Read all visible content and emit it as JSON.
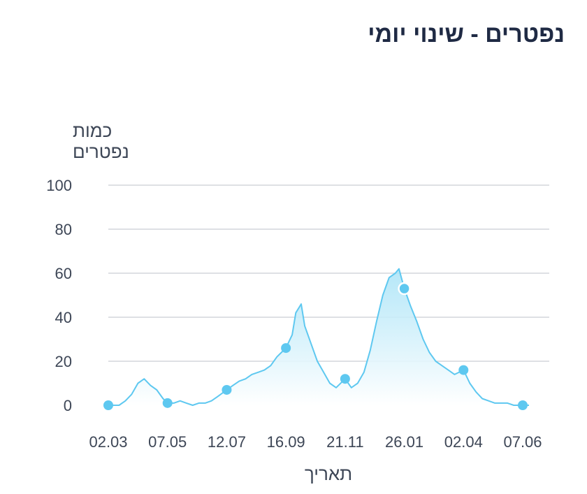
{
  "card": {
    "title": "נפטרים - שינוי יומי"
  },
  "chart_data": {
    "type": "area",
    "title": "נפטרים - שינוי יומי",
    "xlabel": "תאריך",
    "ylabel_lines": [
      "כמות",
      "נפטרים"
    ],
    "ylim": [
      0,
      100
    ],
    "yticks": [
      0,
      20,
      40,
      60,
      80,
      100
    ],
    "xtick_labels": [
      "02.03",
      "07.05",
      "12.07",
      "16.09",
      "21.11",
      "26.01",
      "02.04",
      "07.06"
    ],
    "grid": true,
    "legend": "none",
    "line_color": "#5ec8f0",
    "marker_color": "#5ec8f0",
    "fill_color_top": "#a8e3f7",
    "fill_color_bottom": "#ffffff",
    "series": [
      {
        "x": [
          "02.03",
          "07.03",
          "14.03",
          "21.03",
          "28.03",
          "04.04",
          "11.04",
          "18.04",
          "25.04",
          "02.05",
          "07.05",
          "14.05",
          "21.05",
          "28.05",
          "04.06",
          "11.06",
          "18.06",
          "25.06",
          "02.07",
          "12.07",
          "19.07",
          "26.07",
          "02.08",
          "09.08",
          "16.08",
          "23.08",
          "30.08",
          "06.09",
          "16.09",
          "23.09",
          "27.09",
          "03.10",
          "07.10",
          "14.10",
          "21.10",
          "28.10",
          "04.11",
          "11.11",
          "21.11",
          "28.11",
          "05.12",
          "12.12",
          "19.12",
          "26.12",
          "02.01",
          "09.01",
          "16.01",
          "20.01",
          "26.01",
          "02.02",
          "09.02",
          "16.02",
          "23.02",
          "02.03",
          "09.03",
          "16.03",
          "23.03",
          "02.04",
          "09.04",
          "16.04",
          "23.04",
          "30.04",
          "07.05",
          "14.05",
          "21.05",
          "28.05",
          "07.06",
          "14.06"
        ],
        "values": [
          0,
          0,
          0,
          2,
          5,
          10,
          12,
          9,
          7,
          3,
          1,
          1,
          2,
          1,
          0,
          1,
          1,
          2,
          4,
          7,
          9,
          11,
          12,
          14,
          15,
          16,
          18,
          22,
          26,
          32,
          42,
          46,
          36,
          28,
          20,
          15,
          10,
          8,
          12,
          8,
          10,
          15,
          25,
          38,
          50,
          58,
          60,
          62,
          53,
          45,
          38,
          30,
          24,
          20,
          18,
          16,
          14,
          16,
          10,
          6,
          3,
          2,
          1,
          1,
          1,
          0,
          0,
          0
        ]
      }
    ],
    "markers": [
      {
        "x": "02.03",
        "y": 0
      },
      {
        "x": "07.05",
        "y": 1
      },
      {
        "x": "12.07",
        "y": 7
      },
      {
        "x": "16.09",
        "y": 26
      },
      {
        "x": "21.11",
        "y": 12
      },
      {
        "x": "26.01",
        "y": 53,
        "highlighted": true
      },
      {
        "x": "02.04",
        "y": 16
      },
      {
        "x": "07.06",
        "y": 0
      }
    ]
  }
}
